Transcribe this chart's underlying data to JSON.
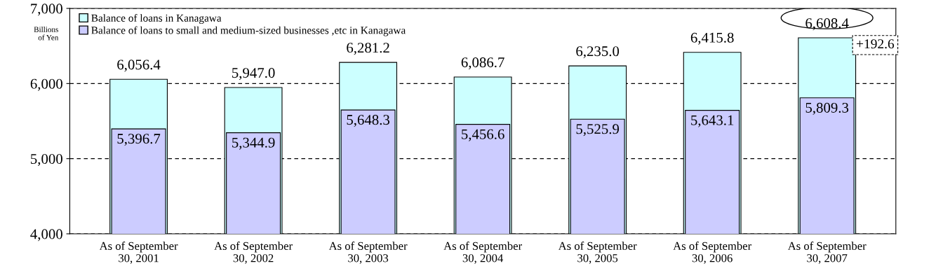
{
  "chart_data": {
    "type": "bar",
    "categories": [
      "As of September\n30, 2001",
      "As of September\n30, 2002",
      "As of September\n30, 2003",
      "As of September\n30, 2004",
      "As of September\n30, 2005",
      "As of September\n30, 2006",
      "As of September\n30, 2007"
    ],
    "series": [
      {
        "name": "Balance of loans in Kanagawa",
        "color": "#ccffff",
        "values": [
          6056.4,
          5947.0,
          6281.2,
          6086.7,
          6235.0,
          6415.8,
          6608.4
        ],
        "value_labels": [
          "6,056.4",
          "5,947.0",
          "6,281.2",
          "6,086.7",
          "6,235.0",
          "6,415.8",
          "6,608.4"
        ]
      },
      {
        "name": "Balance of loans to small and medium-sized businesses ,etc in Kanagawa",
        "color": "#ccccff",
        "values": [
          5396.7,
          5344.9,
          5648.3,
          5456.6,
          5525.9,
          5643.1,
          5809.3
        ],
        "value_labels": [
          "5,396.7",
          "5,344.9",
          "5,648.3",
          "5,456.6",
          "5,525.9",
          "5,643.1",
          "5,809.3"
        ]
      }
    ],
    "ylabel": "Billions\nof Yen",
    "ylim": [
      4000,
      7000
    ],
    "yticks": [
      {
        "value": 4000,
        "label": "4,000"
      },
      {
        "value": 5000,
        "label": "5,000"
      },
      {
        "value": 6000,
        "label": "6,000"
      },
      {
        "value": 7000,
        "label": "7,000"
      }
    ],
    "grid": "y",
    "legend": "top left",
    "annotations": [
      "+192.6"
    ]
  }
}
